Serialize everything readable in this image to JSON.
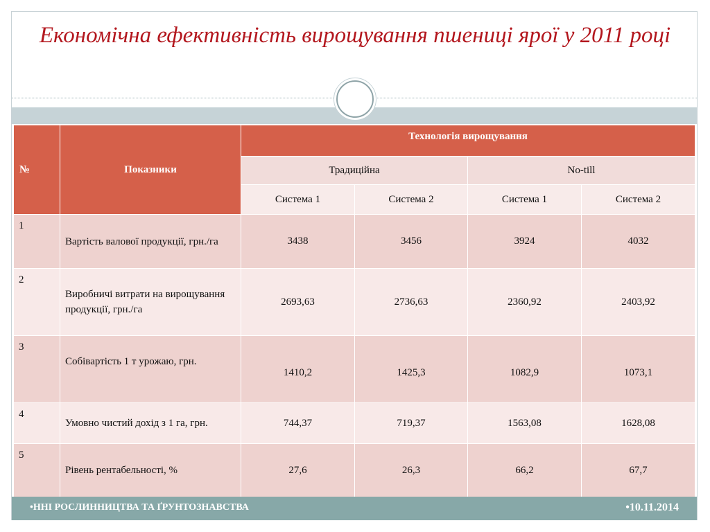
{
  "title": "Економічна ефективність вирощування пшениці ярої у 2011 році",
  "table": {
    "col_num": "№",
    "col_indicators": "Показники",
    "group_header": "Технологія вирощування",
    "technologies": [
      "Традиційна",
      "No-till"
    ],
    "systems": [
      "Система 1",
      "Система 2",
      "Система 1",
      "Система 2"
    ],
    "rows": [
      {
        "num": "1",
        "label": "Вартість валової продукції, грн./га",
        "values": [
          "3438",
          "3456",
          "3924",
          "4032"
        ]
      },
      {
        "num": "2",
        "label": "Виробничі витрати на вирощування продукції, грн./га",
        "values": [
          "2693,63",
          "2736,63",
          "2360,92",
          "2403,92"
        ]
      },
      {
        "num": "3",
        "label": "Собівартість 1 т урожаю, грн.",
        "values": [
          "1410,2",
          "1425,3",
          "1082,9",
          "1073,1"
        ]
      },
      {
        "num": "4",
        "label": "Умовно чистий дохід з 1 га, грн.",
        "values": [
          "744,37",
          "719,37",
          "1563,08",
          "1628,08"
        ]
      },
      {
        "num": "5",
        "label": "Рівень рентабельності, %",
        "values": [
          "27,6",
          "26,3",
          "66,2",
          "67,7"
        ]
      }
    ]
  },
  "footer": {
    "left": "•ННІ РОСЛИННИЦТВА ТА ҐРУНТОЗНАВСТВА",
    "right": "•10.11.2014"
  },
  "colors": {
    "title": "#b3171e",
    "header": "#d5604a",
    "row_dark": "#eed2cf",
    "row_light": "#f8e9e8",
    "footer": "#87a8a8"
  }
}
